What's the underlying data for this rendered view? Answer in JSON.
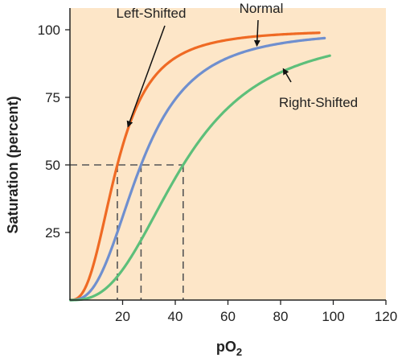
{
  "chart_data": {
    "type": "line",
    "title": "",
    "xlabel": "pO",
    "xlabel_subscript": "2",
    "ylabel": "Saturation (percent)",
    "xlim": [
      0,
      120
    ],
    "ylim": [
      0,
      100
    ],
    "xticks": [
      20,
      40,
      60,
      80,
      100,
      120
    ],
    "yticks": [
      25,
      50,
      75,
      100
    ],
    "grid": false,
    "background_color": "#fde6c8",
    "p50_reference_y": 50,
    "series": [
      {
        "name": "Left-Shifted",
        "color": "#ef6a24",
        "p50": 18,
        "n": 2.7,
        "x_end": 95
      },
      {
        "name": "Normal",
        "color": "#6f8fcf",
        "p50": 27,
        "n": 2.7,
        "x_end": 97
      },
      {
        "name": "Right-Shifted",
        "color": "#5dbf7a",
        "p50": 43,
        "n": 2.7,
        "x_end": 99
      }
    ],
    "annotations": [
      {
        "text": "Left-Shifted",
        "points_to_series": "Left-Shifted"
      },
      {
        "text": "Normal",
        "points_to_series": "Normal"
      },
      {
        "text": "Right-Shifted",
        "points_to_series": "Right-Shifted"
      }
    ]
  }
}
